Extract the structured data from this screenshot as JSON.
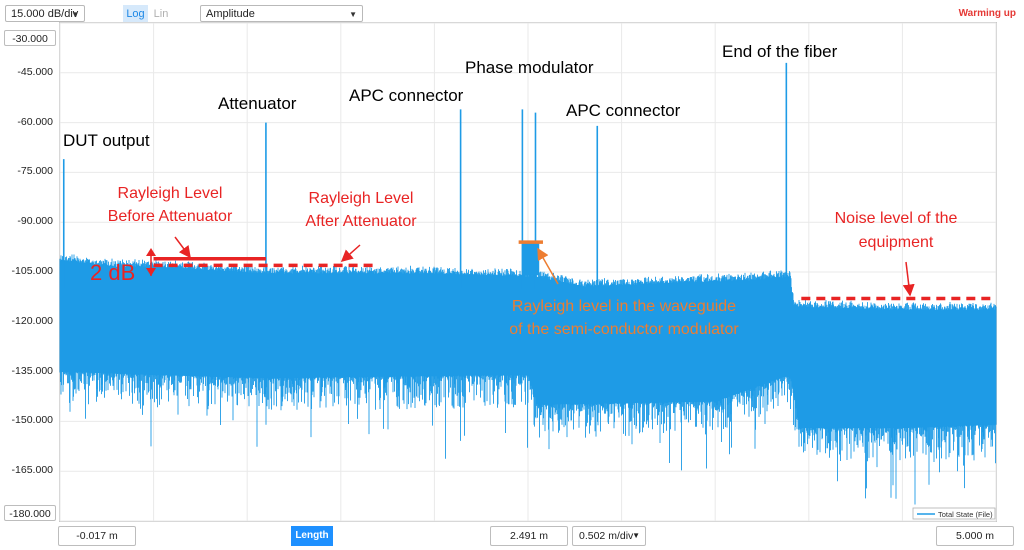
{
  "toolbar": {
    "scale_label": "15.000 dB/div",
    "log_label": "Log",
    "lin_label": "Lin",
    "mode_label": "Amplitude",
    "status": "Warming up",
    "status_color": "#e53935"
  },
  "y_axis": {
    "top_value": "-30.000",
    "bottom_value": "-180.000",
    "ticks": [
      "-45.000",
      "-60.000",
      "-75.000",
      "-90.000",
      "-105.000",
      "-120.000",
      "-135.000",
      "-150.000",
      "-165.000"
    ]
  },
  "x_axis": {
    "left_value": "-0.017 m",
    "center_value": "2.491 m",
    "div_label": "0.502 m/div",
    "right_value": "5.000 m",
    "length_label": "Length"
  },
  "chart_data": {
    "type": "line",
    "title": "",
    "xlabel": "Length",
    "ylabel": "Amplitude",
    "x_unit": "m",
    "y_unit": "dB",
    "xlim": [
      -0.017,
      5.0
    ],
    "ylim": [
      -180,
      -30
    ],
    "grid": true,
    "legend_position": "bottom-right",
    "series": [
      {
        "name": "Total State (File)",
        "color": "#1e9be6",
        "upper_envelope_db": [
          [
            0,
            -99
          ],
          [
            0.3,
            -101
          ],
          [
            0.5,
            -101
          ],
          [
            1.1,
            -103
          ],
          [
            1.5,
            -103
          ],
          [
            2.0,
            -103
          ],
          [
            2.5,
            -104
          ],
          [
            2.55,
            -104
          ],
          [
            2.8,
            -107
          ],
          [
            3.2,
            -106
          ],
          [
            3.7,
            -105
          ],
          [
            3.9,
            -104
          ],
          [
            3.92,
            -113
          ],
          [
            4.5,
            -114
          ],
          [
            5.0,
            -114
          ]
        ],
        "lower_envelope_db": [
          [
            0,
            -135
          ],
          [
            0.5,
            -136
          ],
          [
            1.1,
            -137
          ],
          [
            2.5,
            -136
          ],
          [
            2.55,
            -145
          ],
          [
            3.5,
            -144
          ],
          [
            3.9,
            -136
          ],
          [
            3.95,
            -152
          ],
          [
            4.5,
            -152
          ],
          [
            5.0,
            -151
          ]
        ],
        "peaks": [
          {
            "x": 0.02,
            "y": -71
          },
          {
            "x": 1.1,
            "y": -60
          },
          {
            "x": 2.14,
            "y": -56
          },
          {
            "x": 2.47,
            "y": -56
          },
          {
            "x": 2.54,
            "y": -57
          },
          {
            "x": 2.87,
            "y": -61
          },
          {
            "x": 3.88,
            "y": -42
          }
        ]
      }
    ],
    "annotations": [
      {
        "text": "DUT output",
        "color": "#000000"
      },
      {
        "text": "Attenuator",
        "color": "#000000"
      },
      {
        "text": "APC connector",
        "color": "#000000"
      },
      {
        "text": "Phase modulator",
        "color": "#000000"
      },
      {
        "text": "APC connector",
        "color": "#000000"
      },
      {
        "text": "End of the fiber",
        "color": "#000000"
      },
      {
        "text": "Rayleigh Level",
        "color": "#e82424"
      },
      {
        "text": "Before Attenuator",
        "color": "#e82424"
      },
      {
        "text": "Rayleigh Level",
        "color": "#e82424"
      },
      {
        "text": "After Attenuator",
        "color": "#e82424"
      },
      {
        "text": "2 dB",
        "color": "#e82424"
      },
      {
        "text": "Noise level of the",
        "color": "#e82424"
      },
      {
        "text": "equipment",
        "color": "#e82424"
      },
      {
        "text": "Rayleigh level in the waveguide",
        "color": "#ed7d31"
      },
      {
        "text": "of the semi-conductor modulator",
        "color": "#ed7d31"
      }
    ],
    "levels": [
      {
        "x": [
          0.5,
          1.1
        ],
        "y": -101,
        "style": "solid",
        "color": "#e82424"
      },
      {
        "x": [
          0.5,
          1.7
        ],
        "y": -103,
        "style": "dashed",
        "color": "#e82424"
      },
      {
        "x": [
          2.45,
          2.58
        ],
        "y": -96,
        "style": "solid",
        "color": "#ed7d31"
      },
      {
        "x": [
          3.96,
          4.98
        ],
        "y": -113,
        "style": "dashed",
        "color": "#e82424"
      }
    ]
  }
}
